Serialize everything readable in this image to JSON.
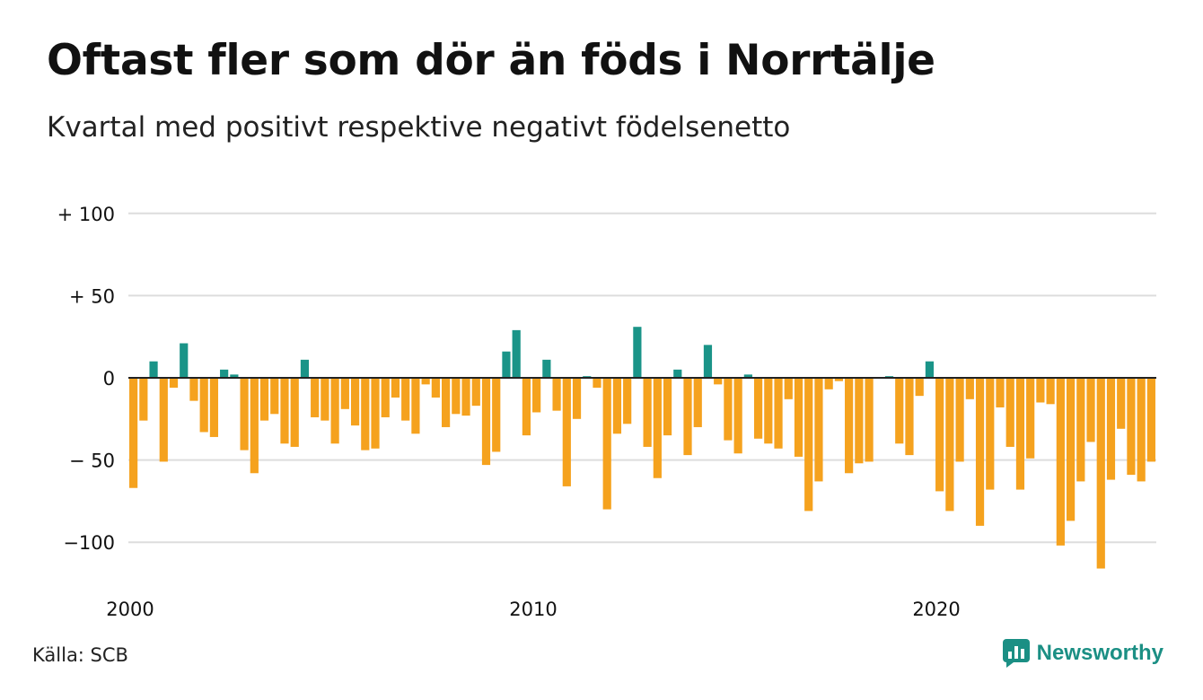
{
  "header": {
    "title": "Oftast fler som dör än föds i Norrtälje",
    "subtitle": "Kvartal med positivt respektive negativt födelsenetto"
  },
  "footer": {
    "source": "Källa: SCB",
    "brand": "Newsworthy"
  },
  "colors": {
    "positive": "#1a9488",
    "negative": "#f5a21e",
    "grid": "#dddddd",
    "zero_line": "#222222",
    "brand": "#1b8f84"
  },
  "icons": {
    "brand_logo": "bar-chart-icon"
  },
  "chart_data": {
    "type": "bar",
    "x_start": 2000,
    "x_end": 2025,
    "periods_per_year": 4,
    "ylim": [
      -120,
      100
    ],
    "yticks": [
      {
        "value": 100,
        "label": "+ 100"
      },
      {
        "value": 50,
        "label": "+  50"
      },
      {
        "value": 0,
        "label": "0"
      },
      {
        "value": -50,
        "label": "− 50"
      },
      {
        "value": -100,
        "label": "−100"
      }
    ],
    "xticks": [
      {
        "value": 2000,
        "label": "2000"
      },
      {
        "value": 2010,
        "label": "2010"
      },
      {
        "value": 2020,
        "label": "2020"
      }
    ],
    "grid": true,
    "values": [
      -67,
      -26,
      10,
      -51,
      -6,
      21,
      -14,
      -33,
      -36,
      5,
      2,
      -44,
      -58,
      -26,
      -22,
      -40,
      -42,
      11,
      -24,
      -26,
      -40,
      -19,
      -29,
      -44,
      -43,
      -24,
      -12,
      -26,
      -34,
      -4,
      -12,
      -30,
      -22,
      -23,
      -17,
      -53,
      -45,
      16,
      29,
      -35,
      -21,
      11,
      -20,
      -66,
      -25,
      1,
      -6,
      -80,
      -34,
      -28,
      31,
      -42,
      -61,
      -35,
      5,
      -47,
      -30,
      20,
      -4,
      -38,
      -46,
      2,
      -37,
      -40,
      -43,
      -13,
      -48,
      -81,
      -63,
      -7,
      -2,
      -58,
      -52,
      -51,
      0,
      1,
      -40,
      -47,
      -11,
      10,
      -69,
      -81,
      -51,
      -13,
      -90,
      -68,
      -18,
      -42,
      -68,
      -49,
      -15,
      -16,
      -102,
      -87,
      -63,
      -39,
      -116,
      -62,
      -31,
      -59,
      -63,
      -51
    ]
  }
}
